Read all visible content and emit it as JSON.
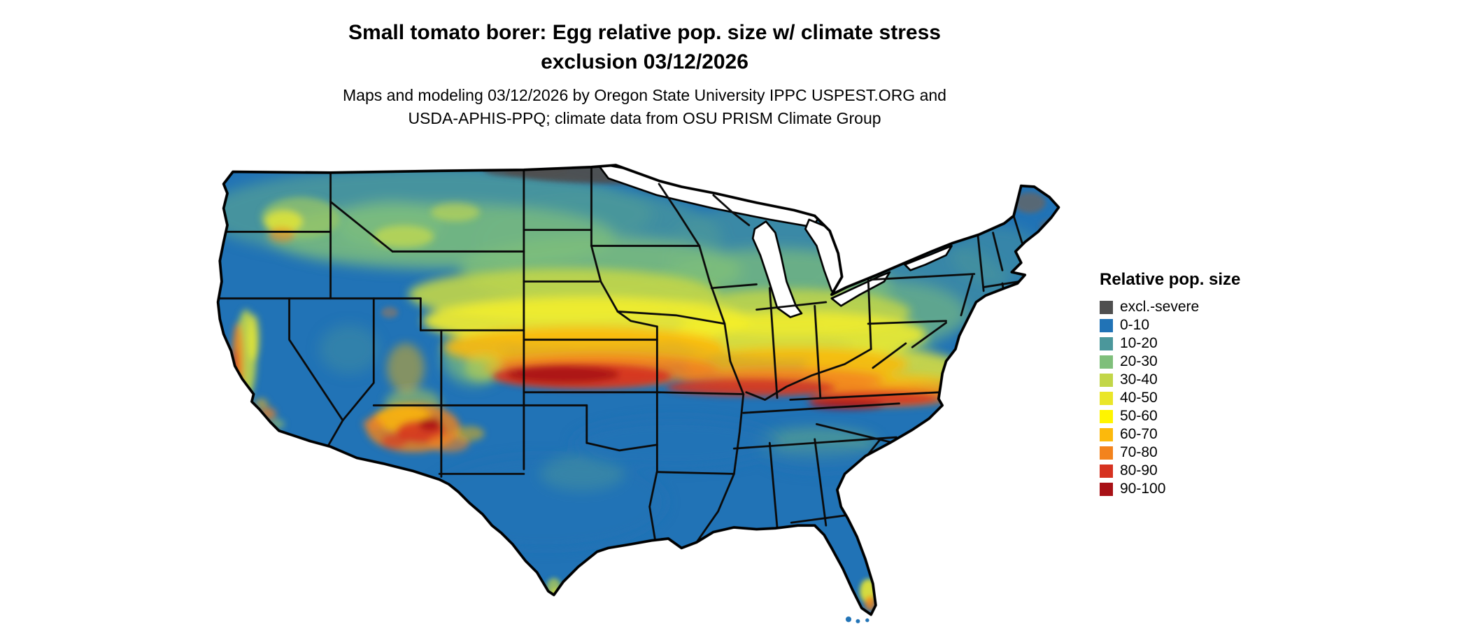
{
  "title": {
    "line1": "Small tomato borer: Egg relative pop. size w/ climate stress",
    "line2": "exclusion 03/12/2026"
  },
  "subtitle": {
    "line1": "Maps and modeling 03/12/2026 by Oregon State University IPPC USPEST.ORG and",
    "line2": "USDA-APHIS-PPQ; climate data from OSU PRISM Climate Group"
  },
  "map": {
    "region": "Continental United States",
    "kind": "relative population size raster map with state borders",
    "base_color": "#2173b6",
    "border_color": "#000000",
    "water_color": "#ffffff"
  },
  "legend": {
    "title": "Relative pop. size",
    "items": [
      {
        "label": "excl.-severe",
        "color": "#4f4f4f"
      },
      {
        "label": "0-10",
        "color": "#2173b6"
      },
      {
        "label": "10-20",
        "color": "#4b979b"
      },
      {
        "label": "20-30",
        "color": "#7fbf7b"
      },
      {
        "label": "30-40",
        "color": "#c2d648"
      },
      {
        "label": "40-50",
        "color": "#eae628"
      },
      {
        "label": "50-60",
        "color": "#fff500"
      },
      {
        "label": "60-70",
        "color": "#fcb90c"
      },
      {
        "label": "70-80",
        "color": "#f3831d"
      },
      {
        "label": "80-90",
        "color": "#d63220"
      },
      {
        "label": "90-100",
        "color": "#a81116"
      }
    ]
  }
}
